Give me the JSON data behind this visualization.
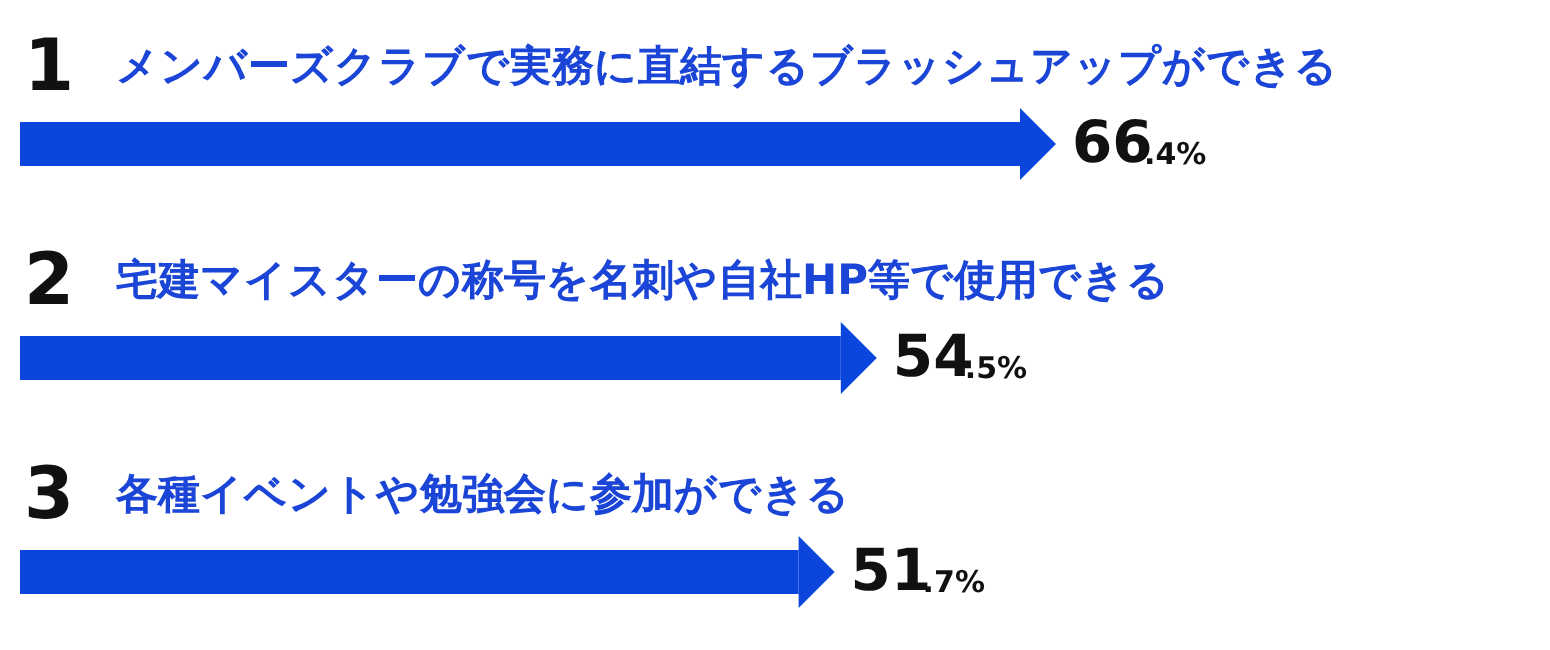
{
  "chart_data": {
    "type": "bar",
    "orientation": "horizontal",
    "categories": [
      "メンバーズクラブで実務に直結するブラッシュアップができる",
      "宅建マイスターの称号を名刺や自社HP等で使用できる",
      "各種イベントや勉強会に参加ができる"
    ],
    "values": [
      66.4,
      54.5,
      51.7
    ],
    "color": "#0a46dc",
    "value_labels": [
      "66.4%",
      "54.5%",
      "51.7%"
    ],
    "annotations": [
      "1",
      "2",
      "3"
    ]
  }
}
